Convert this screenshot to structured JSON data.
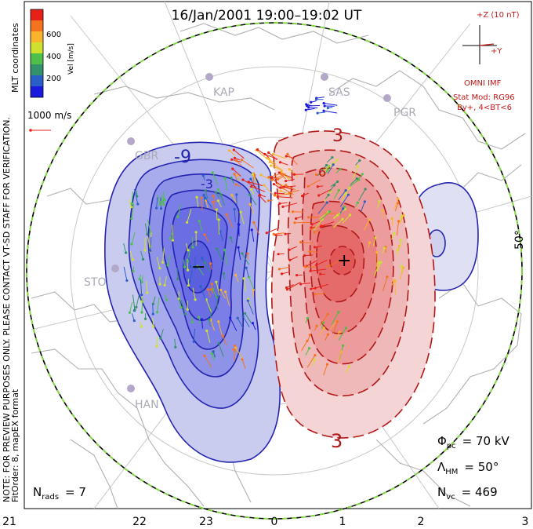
{
  "title": "16/Jan/2001 19:00–19:02 UT",
  "colorbar": {
    "label": "Vel [m/s]",
    "ticks": [
      "600",
      "400",
      "200"
    ],
    "colors": [
      "#e8201a",
      "#f4731f",
      "#f8b42c",
      "#cfe02e",
      "#4dbf4a",
      "#33926b",
      "#2b5fc8",
      "#1a1adc"
    ]
  },
  "side_text": {
    "coords": "MLT coordinates",
    "note": "NOTE: FOR PREVIEW PURPOSES ONLY. PLEASE CONTACT VT-SD STAFF FOR VERIFICATION.",
    "fit": "FitOrder: 8, mapEX format"
  },
  "velocity_scale": "1000 m/s",
  "imf": {
    "bz": "+Z (10 nT)",
    "by": "+Y",
    "source": "OMNI IMF",
    "model": "Stat Mod: RG96",
    "condition": "By+, 4<BT<6"
  },
  "stations": [
    "KAP",
    "SAS",
    "PGR",
    "GBR",
    "STO",
    "HAN"
  ],
  "contour_labels": {
    "neg": "-9",
    "pos": "3",
    "neg_small": "-3",
    "pos_small": "6",
    "pos_bottom": "3"
  },
  "extrema": {
    "min": "−",
    "max": "+"
  },
  "lat_label": "50°",
  "mlt_ticks": [
    "21",
    "22",
    "23",
    "0",
    "1",
    "2",
    "3"
  ],
  "stats": {
    "phi_pc": {
      "symbol": "Φ",
      "sub": "pc",
      "value": "= 70 kV"
    },
    "lambda_hm": {
      "symbol": "Λ",
      "sub": "HM",
      "value": "= 50°"
    },
    "n_vc": {
      "symbol": "N",
      "sub": "vc",
      "value": "= 469"
    },
    "n_rads": {
      "symbol": "N",
      "sub": "rads",
      "value": "= 7"
    }
  },
  "cells": {
    "neg_color": "#2a2ac0",
    "pos_color": "#c01818"
  }
}
